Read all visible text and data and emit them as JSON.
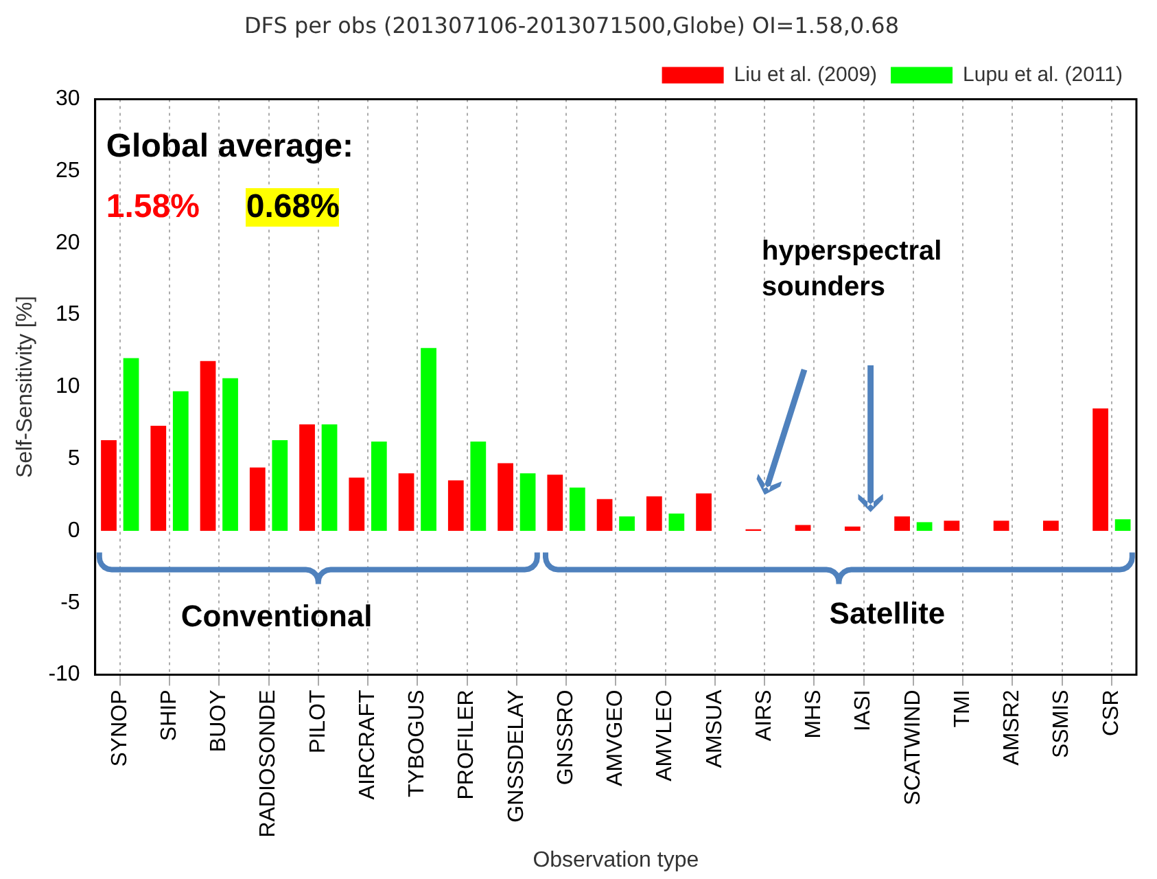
{
  "chart_data": {
    "type": "bar",
    "title": "DFS per obs (201307106-2013071500,Globe) OI=1.58,0.68",
    "xlabel": "Observation type",
    "ylabel": "Self-Sensitivity [%]",
    "categories": [
      "SYNOP",
      "SHIP",
      "BUOY",
      "RADIOSONDE",
      "PILOT",
      "AIRCRAFT",
      "TYBOGUS",
      "PROFILER",
      "GNSSDELAY",
      "GNSSRO",
      "AMVGEO",
      "AMVLEO",
      "AMSUA",
      "AIRS",
      "MHS",
      "IASI",
      "SCATWIND",
      "TMI",
      "AMSR2",
      "SSMIS",
      "CSR"
    ],
    "series": [
      {
        "name": "Liu et al. (2009)",
        "color": "#ff0000",
        "values": [
          6.3,
          7.3,
          11.8,
          4.4,
          7.4,
          3.7,
          4.0,
          3.5,
          4.7,
          3.9,
          2.2,
          2.4,
          2.6,
          0.1,
          0.4,
          0.3,
          1.0,
          0.7,
          0.7,
          0.7,
          8.5
        ]
      },
      {
        "name": "Lupu et al. (2011)",
        "color": "#00ff00",
        "values": [
          12.0,
          9.7,
          10.6,
          6.3,
          7.4,
          6.2,
          12.7,
          6.2,
          4.0,
          3.0,
          1.0,
          1.2,
          0,
          0,
          0,
          0,
          0.6,
          0,
          0,
          0,
          0.8
        ]
      }
    ],
    "ylim": [
      -10,
      30
    ],
    "yticks": [
      -10,
      -5,
      0,
      5,
      10,
      15,
      20,
      25,
      30
    ],
    "grid": "x",
    "legend": "top right",
    "annotations": [
      "Global average:",
      "1.58%",
      "0.68%",
      "hyperspectral sounders",
      "Conventional",
      "Satellite"
    ]
  }
}
